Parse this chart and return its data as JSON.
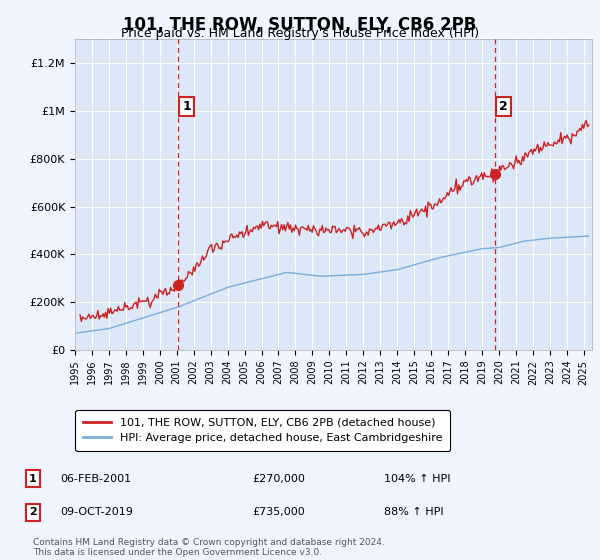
{
  "title": "101, THE ROW, SUTTON, ELY, CB6 2PB",
  "subtitle": "Price paid vs. HM Land Registry's House Price Index (HPI)",
  "background_color": "#f0f4ff",
  "plot_bg_color": "#dce8f8",
  "ylabel_ticks": [
    "£0",
    "£200K",
    "£400K",
    "£600K",
    "£800K",
    "£1M",
    "£1.2M"
  ],
  "ytick_values": [
    0,
    200000,
    400000,
    600000,
    800000,
    1000000,
    1200000
  ],
  "ylim": [
    0,
    1300000
  ],
  "xlim_start": 1995.0,
  "xlim_end": 2025.5,
  "xtick_years": [
    1995,
    1996,
    1997,
    1998,
    1999,
    2000,
    2001,
    2002,
    2003,
    2004,
    2005,
    2006,
    2007,
    2008,
    2009,
    2010,
    2011,
    2012,
    2013,
    2014,
    2015,
    2016,
    2017,
    2018,
    2019,
    2020,
    2021,
    2022,
    2023,
    2024,
    2025
  ],
  "hpi_color": "#7aaddb",
  "price_color": "#cc2222",
  "marker1_x": 2001.1,
  "marker1_y": 270000,
  "marker2_x": 2019.77,
  "marker2_y": 735000,
  "sale1_label": "06-FEB-2001",
  "sale1_price": "£270,000",
  "sale1_hpi": "104% ↑ HPI",
  "sale2_label": "09-OCT-2019",
  "sale2_price": "£735,000",
  "sale2_hpi": "88% ↑ HPI",
  "legend_line1": "101, THE ROW, SUTTON, ELY, CB6 2PB (detached house)",
  "legend_line2": "HPI: Average price, detached house, East Cambridgeshire",
  "footer": "Contains HM Land Registry data © Crown copyright and database right 2024.\nThis data is licensed under the Open Government Licence v3.0."
}
